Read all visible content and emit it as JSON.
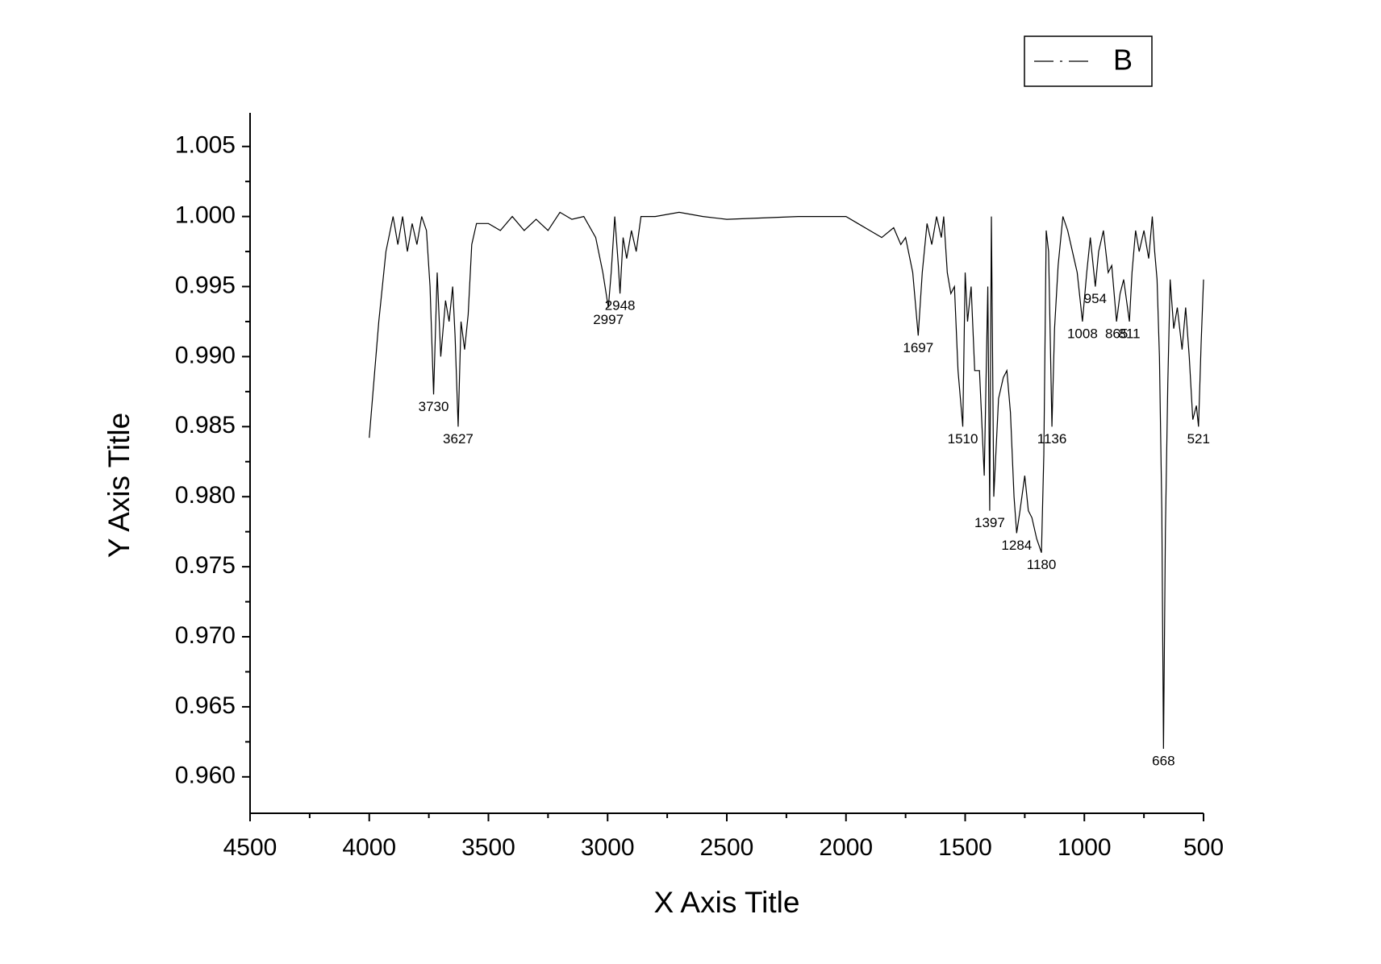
{
  "chart_data": {
    "type": "line",
    "xlabel": "X Axis Title",
    "ylabel": "Y Axis Title",
    "xlim": [
      4500,
      500
    ],
    "ylim": [
      0.9574,
      1.0074
    ],
    "xticks": [
      4500,
      4000,
      3500,
      3000,
      2500,
      2000,
      1500,
      1000,
      500
    ],
    "yticks": [
      {
        "value": 0.96,
        "label": "0.960"
      },
      0.965,
      {
        "value": 0.97,
        "label": "0.970"
      },
      0.975,
      {
        "value": 0.98,
        "label": "0.980"
      },
      0.985,
      {
        "value": 0.99,
        "label": "0.990"
      },
      0.995,
      {
        "value": 1,
        "label": "1.000"
      },
      1.005
    ],
    "legend": "upper right",
    "x": [
      4000,
      3960,
      3930,
      3900,
      3880,
      3860,
      3840,
      3820,
      3800,
      3780,
      3760,
      3745,
      3730,
      3715,
      3700,
      3680,
      3665,
      3650,
      3640,
      3627,
      3615,
      3600,
      3585,
      3570,
      3550,
      3500,
      3450,
      3400,
      3350,
      3300,
      3250,
      3200,
      3150,
      3100,
      3050,
      3020,
      2997,
      2985,
      2970,
      2955,
      2948,
      2935,
      2920,
      2900,
      2880,
      2860,
      2800,
      2700,
      2600,
      2500,
      2200,
      2100,
      2000,
      1950,
      1900,
      1850,
      1800,
      1770,
      1750,
      1720,
      1697,
      1680,
      1660,
      1640,
      1620,
      1600,
      1590,
      1575,
      1560,
      1545,
      1530,
      1510,
      1500,
      1490,
      1475,
      1460,
      1440,
      1420,
      1405,
      1397,
      1390,
      1380,
      1360,
      1340,
      1325,
      1310,
      1295,
      1284,
      1270,
      1250,
      1235,
      1220,
      1200,
      1180,
      1170,
      1160,
      1150,
      1136,
      1125,
      1110,
      1090,
      1070,
      1050,
      1030,
      1008,
      990,
      975,
      954,
      940,
      920,
      900,
      885,
      865,
      850,
      835,
      811,
      800,
      785,
      770,
      750,
      730,
      715,
      705,
      695,
      685,
      675,
      668,
      660,
      650,
      640,
      625,
      610,
      590,
      575,
      560,
      545,
      530,
      521,
      510,
      500
    ],
    "series": [
      {
        "name": "B",
        "color": "#000000",
        "values": [
          0.9842,
          0.9925,
          0.9975,
          1.0,
          0.998,
          1.0,
          0.9975,
          0.9995,
          0.998,
          1.0,
          0.999,
          0.995,
          0.9873,
          0.996,
          0.99,
          0.994,
          0.9925,
          0.995,
          0.9915,
          0.985,
          0.9925,
          0.9905,
          0.993,
          0.998,
          0.9995,
          0.9995,
          0.999,
          1.0,
          0.999,
          0.9998,
          0.999,
          1.0003,
          0.9998,
          1.0,
          0.9985,
          0.996,
          0.9935,
          0.996,
          1.0,
          0.9965,
          0.9945,
          0.9985,
          0.997,
          0.999,
          0.9975,
          1.0,
          1.0,
          1.0003,
          1.0,
          0.9998,
          1.0,
          1.0,
          1.0,
          0.9995,
          0.999,
          0.9985,
          0.9992,
          0.998,
          0.9985,
          0.996,
          0.9915,
          0.996,
          0.9995,
          0.998,
          1.0,
          0.9985,
          1.0,
          0.996,
          0.9945,
          0.995,
          0.989,
          0.985,
          0.996,
          0.9925,
          0.995,
          0.989,
          0.989,
          0.9815,
          0.995,
          0.979,
          1.0,
          0.98,
          0.987,
          0.9885,
          0.989,
          0.986,
          0.98,
          0.9774,
          0.979,
          0.9815,
          0.979,
          0.9785,
          0.977,
          0.976,
          0.983,
          0.999,
          0.9975,
          0.985,
          0.992,
          0.9965,
          1.0,
          0.999,
          0.9975,
          0.996,
          0.9925,
          0.996,
          0.9985,
          0.995,
          0.9975,
          0.999,
          0.996,
          0.9965,
          0.9925,
          0.9945,
          0.9955,
          0.9925,
          0.996,
          0.999,
          0.9975,
          0.999,
          0.997,
          1.0,
          0.9975,
          0.9955,
          0.99,
          0.979,
          0.962,
          0.9775,
          0.988,
          0.9955,
          0.992,
          0.9935,
          0.9905,
          0.9935,
          0.99,
          0.9855,
          0.9865,
          0.985,
          0.991,
          0.9955
        ]
      }
    ],
    "annotations": [
      {
        "x": 3730,
        "y": 0.9873
      },
      {
        "x": 3627,
        "y": 0.985
      },
      {
        "x": 2997,
        "y": 0.9935
      },
      {
        "x": 2948,
        "y": 0.9945
      },
      {
        "x": 1697,
        "y": 0.9915
      },
      {
        "x": 1510,
        "y": 0.985
      },
      {
        "x": 1397,
        "y": 0.979
      },
      {
        "x": 1284,
        "y": 0.9774
      },
      {
        "x": 1180,
        "y": 0.976
      },
      {
        "x": 1136,
        "y": 0.985
      },
      {
        "x": 1008,
        "y": 0.9925
      },
      {
        "x": 954,
        "y": 0.995
      },
      {
        "x": 865,
        "y": 0.9925
      },
      {
        "x": 811,
        "y": 0.9925
      },
      {
        "x": 668,
        "y": 0.962
      },
      {
        "x": 521,
        "y": 0.985
      }
    ]
  }
}
